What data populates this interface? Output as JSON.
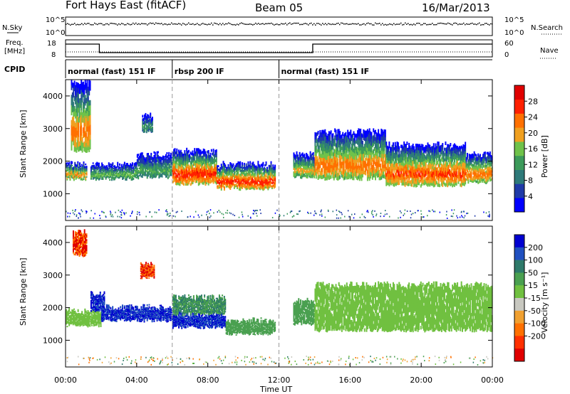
{
  "header": {
    "station": "Fort Hays East (fitACF)",
    "beam": "Beam 05",
    "date": "16/Mar/2013"
  },
  "strips": {
    "nsky_label": "N.Sky",
    "nsky_ticks": [
      "10^5",
      "10^0"
    ],
    "nsearch_label": "N.Search",
    "nsearch_ticks": [
      "10^5",
      "10^0"
    ],
    "freq_label_line1": "Freq.",
    "freq_label_line2": "[MHz]",
    "freq_ticks": [
      "18",
      "8"
    ],
    "nave_label": "Nave",
    "nave_ticks": [
      "60",
      "0"
    ],
    "cpid_label": "CPID",
    "cpid_segments": [
      {
        "label": "normal (fast) 151 IF",
        "start_h": 0,
        "end_h": 6
      },
      {
        "label": "rbsp 200 IF",
        "start_h": 6,
        "end_h": 12
      },
      {
        "label": "normal (fast) 151 IF",
        "start_h": 12,
        "end_h": 24
      }
    ],
    "freq_steps": [
      {
        "start_h": 0,
        "end_h": 1.9,
        "level": "high"
      },
      {
        "start_h": 1.9,
        "end_h": 13.9,
        "level": "low"
      },
      {
        "start_h": 13.9,
        "end_h": 24,
        "level": "high"
      }
    ]
  },
  "colorbars": {
    "power": {
      "label": "Power [dB]",
      "ticks": [
        "28",
        "24",
        "20",
        "16",
        "12",
        "8",
        "4"
      ],
      "colors": [
        "#0000ff",
        "#1f3aa8",
        "#2e7a7a",
        "#3c9a5a",
        "#6fc24a",
        "#f0a020",
        "#ff7000",
        "#ff2000",
        "#e00000"
      ]
    },
    "velocity": {
      "label": "Velocity [m s⁻¹]",
      "ticks": [
        "200",
        "100",
        "50",
        "15",
        "-15",
        "-50",
        "-100",
        "-200"
      ],
      "colors": [
        "#0000d0",
        "#2050c0",
        "#2e7a6a",
        "#4aa050",
        "#70c040",
        "#c8c8c0",
        "#f0a030",
        "#ff7000",
        "#ff3000",
        "#e00000"
      ]
    }
  },
  "axes": {
    "ylabel": "Slant Range [km]",
    "xlabel": "Time UT",
    "xticks": [
      "00:00",
      "04:00",
      "08:00",
      "12:00",
      "16:00",
      "20:00",
      "00:00"
    ],
    "yticks": [
      "1000",
      "2000",
      "3000",
      "4000"
    ]
  },
  "chart_data": [
    {
      "type": "heatmap",
      "title": "Power [dB]",
      "xlabel": "",
      "ylabel": "Slant Range [km]",
      "x_range_h": [
        0,
        24
      ],
      "ylim_km": [
        180,
        4500
      ],
      "bands": [
        {
          "t0": 0.0,
          "t1": 1.2,
          "r_lo": 1450,
          "r_hi": 1900,
          "peak_db": 22
        },
        {
          "t0": 0.3,
          "t1": 1.4,
          "r_lo": 2300,
          "r_hi": 4400,
          "peak_db": 24
        },
        {
          "t0": 1.4,
          "t1": 4.0,
          "r_lo": 1450,
          "r_hi": 1900,
          "peak_db": 16
        },
        {
          "t0": 4.0,
          "t1": 6.0,
          "r_lo": 1500,
          "r_hi": 2200,
          "peak_db": 14
        },
        {
          "t0": 4.3,
          "t1": 4.9,
          "r_lo": 2900,
          "r_hi": 3400,
          "peak_db": 12
        },
        {
          "t0": 6.0,
          "t1": 8.5,
          "r_lo": 1300,
          "r_hi": 2300,
          "peak_db": 28
        },
        {
          "t0": 8.5,
          "t1": 11.8,
          "r_lo": 1150,
          "r_hi": 1900,
          "peak_db": 28
        },
        {
          "t0": 12.8,
          "t1": 14.0,
          "r_lo": 1500,
          "r_hi": 2200,
          "peak_db": 20
        },
        {
          "t0": 14.0,
          "t1": 18.0,
          "r_lo": 1450,
          "r_hi": 2900,
          "peak_db": 24
        },
        {
          "t0": 18.0,
          "t1": 22.5,
          "r_lo": 1250,
          "r_hi": 2500,
          "peak_db": 26
        },
        {
          "t0": 22.5,
          "t1": 24.0,
          "r_lo": 1350,
          "r_hi": 2200,
          "peak_db": 24
        }
      ]
    },
    {
      "type": "heatmap",
      "title": "Velocity [m s⁻¹]",
      "xlabel": "Time UT",
      "ylabel": "Slant Range [km]",
      "x_range_h": [
        0,
        24
      ],
      "ylim_km": [
        180,
        4500
      ],
      "bands": [
        {
          "t0": 0.0,
          "t1": 2.0,
          "r_lo": 1450,
          "r_hi": 1900,
          "velocity": 0
        },
        {
          "t0": 0.4,
          "t1": 1.2,
          "r_lo": 3600,
          "r_hi": 4300,
          "velocity": -200
        },
        {
          "t0": 1.4,
          "t1": 2.2,
          "r_lo": 1900,
          "r_hi": 2400,
          "velocity": 200
        },
        {
          "t0": 2.0,
          "t1": 6.0,
          "r_lo": 1600,
          "r_hi": 2000,
          "velocity": 200
        },
        {
          "t0": 4.2,
          "t1": 5.0,
          "r_lo": 2900,
          "r_hi": 3300,
          "velocity": -200
        },
        {
          "t0": 6.0,
          "t1": 9.0,
          "r_lo": 1400,
          "r_hi": 1800,
          "velocity": 200
        },
        {
          "t0": 6.0,
          "t1": 9.0,
          "r_lo": 1800,
          "r_hi": 2300,
          "velocity": 50
        },
        {
          "t0": 9.0,
          "t1": 11.8,
          "r_lo": 1200,
          "r_hi": 1600,
          "velocity": 30
        },
        {
          "t0": 12.8,
          "t1": 14.0,
          "r_lo": 1500,
          "r_hi": 2200,
          "velocity": 30
        },
        {
          "t0": 14.0,
          "t1": 24.0,
          "r_lo": 1300,
          "r_hi": 2700,
          "velocity": 0
        }
      ]
    }
  ]
}
